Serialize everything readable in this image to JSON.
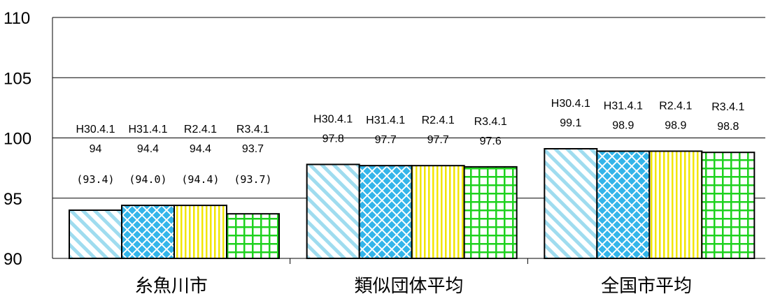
{
  "chart_data": {
    "type": "bar",
    "categories": [
      "糸魚川市",
      "類似団体平均",
      "全国市平均"
    ],
    "series": [
      {
        "name": "H30.4.1",
        "values": [
          94,
          97.8,
          99.1
        ],
        "pattern": "diagonal",
        "color": "#9fdcef"
      },
      {
        "name": "H31.4.1",
        "values": [
          94.4,
          97.7,
          98.9
        ],
        "pattern": "diamond",
        "color": "#33b5ea"
      },
      {
        "name": "R2.4.1",
        "values": [
          94.4,
          97.7,
          98.9
        ],
        "pattern": "vertical",
        "color": "#f2e600"
      },
      {
        "name": "R3.4.1",
        "values": [
          93.7,
          97.6,
          98.8
        ],
        "pattern": "grid",
        "color": "#1ed21e"
      }
    ],
    "paren_labels": [
      "(93.4)",
      "(94.0)",
      "(94.4)",
      "(93.7)"
    ],
    "ylim": [
      90,
      110
    ],
    "yticks": [
      90,
      95,
      100,
      105,
      110
    ],
    "grid": true,
    "title": "",
    "xlabel": "",
    "ylabel": ""
  }
}
